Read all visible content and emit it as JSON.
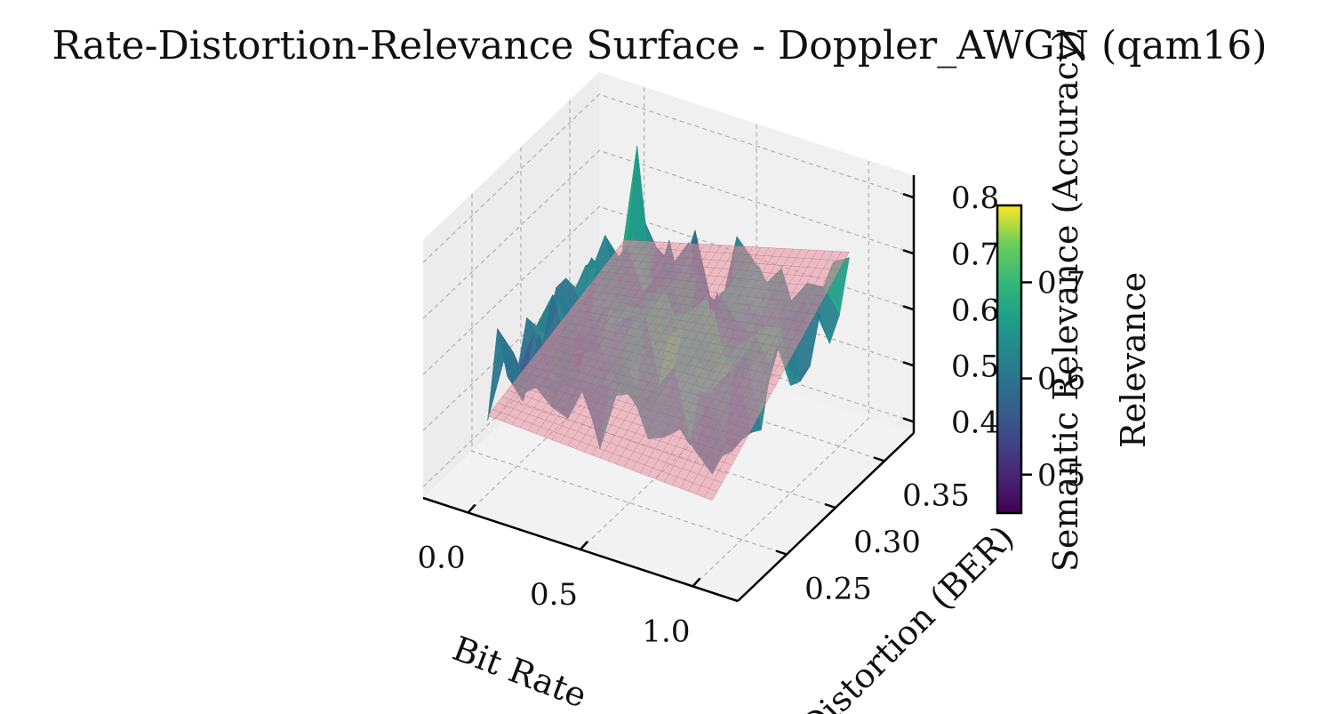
{
  "chart_data": {
    "type": "surface3d",
    "title": "Rate-Distortion-Relevance Surface - Doppler_AWGN (qam16)",
    "xlabel": "Bit Rate",
    "ylabel": "Distortion (BER)",
    "zlabel": "Semantic Relevance (Accuracy)",
    "x_ticks": [
      "0.0",
      "0.5",
      "1.0"
    ],
    "y_ticks": [
      "0.25",
      "0.30",
      "0.35"
    ],
    "z_ticks": [
      "0.4",
      "0.5",
      "0.6",
      "0.7",
      "0.8"
    ],
    "xlim": [
      -0.2,
      1.2
    ],
    "ylim": [
      0.2,
      0.38
    ],
    "zlim": [
      0.38,
      0.84
    ],
    "grid": true,
    "colormap": "viridis",
    "colorbar": {
      "label": "Relevance",
      "ticks": [
        "0.5",
        "0.6",
        "0.7"
      ],
      "range": [
        0.46,
        0.78
      ]
    },
    "plane": {
      "color": "#e8909f",
      "corner_z": {
        "x_min_y_min": 0.52,
        "x_max_y_min": 0.5,
        "x_min_y_max": 0.6,
        "x_max_y_max": 0.71
      }
    },
    "surface": {
      "x_range": [
        0.0,
        1.0
      ],
      "y_range": [
        0.22,
        0.36
      ],
      "mean_relevance": 0.6,
      "peak_relevance": 0.82,
      "min_relevance": 0.45
    }
  }
}
